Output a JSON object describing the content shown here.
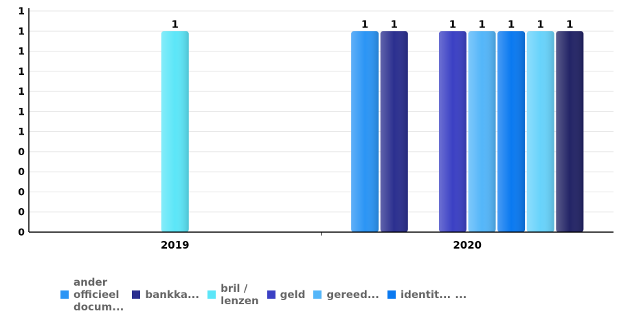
{
  "chart_data": {
    "type": "bar",
    "categories": [
      "2019",
      "2020"
    ],
    "ylim": [
      0,
      1
    ],
    "y_tick_labels": [
      "0",
      "0",
      "0",
      "0",
      "0",
      "1",
      "1",
      "1",
      "1",
      "1",
      "1",
      "1"
    ],
    "grid": true,
    "legend_position": "bottom",
    "series": [
      {
        "name": "ander officieel docum...",
        "legend_lines": [
          "ander",
          "officieel",
          "docum..."
        ],
        "color": "#2b95f5",
        "values": [
          null,
          1
        ]
      },
      {
        "name": "bankka...",
        "legend_lines": [
          "bankka..."
        ],
        "color": "#2b2f8f",
        "values": [
          null,
          1
        ]
      },
      {
        "name": "bril / lenzen",
        "legend_lines": [
          "bril /",
          "lenzen"
        ],
        "color": "#5ce6f8",
        "values": [
          1,
          null
        ]
      },
      {
        "name": "geld",
        "legend_lines": [
          "geld"
        ],
        "color": "#3b40c4",
        "values": [
          null,
          1
        ]
      },
      {
        "name": "gereed...",
        "legend_lines": [
          "gereed..."
        ],
        "color": "#54b6f9",
        "values": [
          null,
          1
        ]
      },
      {
        "name": "identit...",
        "legend_lines": [
          "identit..."
        ],
        "color": "#0a79f0",
        "values": [
          null,
          1
        ]
      },
      {
        "name": "",
        "legend_lines": [],
        "color": "#68d3fb",
        "values": [
          null,
          1
        ]
      },
      {
        "name": "",
        "legend_lines": [],
        "color": "#232466",
        "values": [
          null,
          1
        ]
      }
    ],
    "data_labels": [
      [
        "1"
      ],
      [
        "1",
        "1",
        "1",
        "1",
        "1",
        "1",
        "1"
      ]
    ],
    "legend_overflow": "..."
  }
}
